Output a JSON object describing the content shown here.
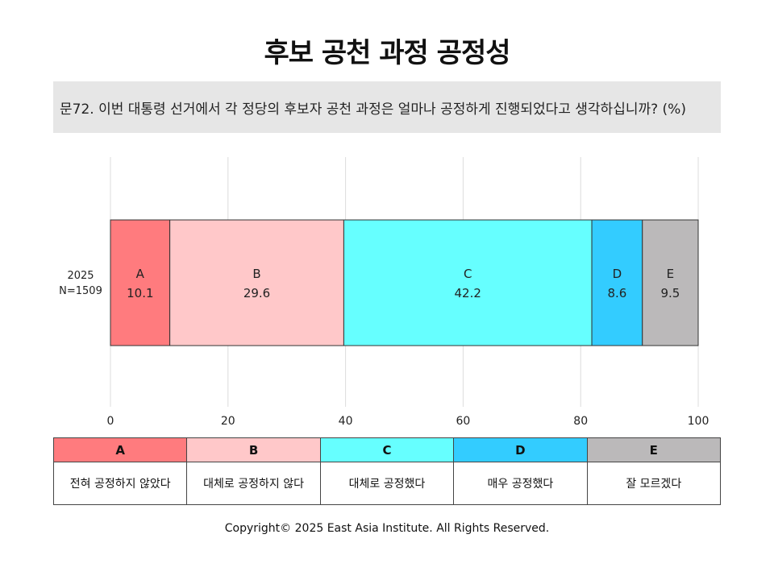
{
  "title": "후보 공천 과정 공정성",
  "question": "문72. 이번 대통령 선거에서 각 정당의 후보자 공천 과정은 얼마나 공정하게 진행되었다고 생각하십니까?  (%)",
  "copyright": "Copyright© 2025 East Asia Institute. All Rights Reserved.",
  "legend": [
    {
      "key": "A",
      "label": "전혀 공정하지 않았다",
      "color": "#ff7b7e"
    },
    {
      "key": "B",
      "label": "대체로 공정하지 않다",
      "color": "#ffc8c9"
    },
    {
      "key": "C",
      "label": "대체로 공정했다",
      "color": "#66ffff"
    },
    {
      "key": "D",
      "label": "매우 공정했다",
      "color": "#33ccff"
    },
    {
      "key": "E",
      "label": "잘 모르겠다",
      "color": "#bbb9ba"
    }
  ],
  "chart_data": {
    "type": "bar",
    "orientation": "horizontal",
    "stacked": true,
    "categories": [
      "2025\nN=1509"
    ],
    "series": [
      {
        "name": "A",
        "values": [
          10.1
        ],
        "color": "#ff7b7e"
      },
      {
        "name": "B",
        "values": [
          29.6
        ],
        "color": "#ffc8c9"
      },
      {
        "name": "C",
        "values": [
          42.2
        ],
        "color": "#66ffff"
      },
      {
        "name": "D",
        "values": [
          8.6
        ],
        "color": "#33ccff"
      },
      {
        "name": "E",
        "values": [
          9.5
        ],
        "color": "#bbb9ba"
      }
    ],
    "xlim": [
      0,
      100
    ],
    "xticks": [
      0,
      20,
      40,
      60,
      80,
      100
    ],
    "grid": true
  }
}
